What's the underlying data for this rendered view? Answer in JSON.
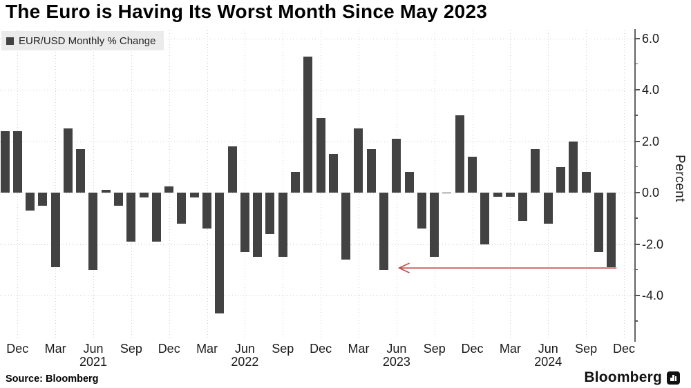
{
  "title": "The Euro is Having Its Worst Month Since May 2023",
  "legend": {
    "label": "EUR/USD Monthly % Change",
    "marker_color": "#424242"
  },
  "source": {
    "text": "Source: Bloomberg"
  },
  "brand": {
    "name": "Bloomberg",
    "icon": "bloomberg-pogo-icon"
  },
  "colors": {
    "bar": "#424242",
    "axis": "#636363",
    "grid": "#c9c9c9",
    "arrow": "#bf4a47",
    "legend_bg": "#ebebeb",
    "background": "#ffffff"
  },
  "chart_data": {
    "type": "bar",
    "title": "The Euro is Having Its Worst Month Since May 2023",
    "series_label": "EUR/USD Monthly % Change",
    "xlabel": "",
    "ylabel": "Percent",
    "ylim": [
      -5.6,
      6.4
    ],
    "grid": "dotted",
    "legend_position": "top-left",
    "y_axis_side": "right",
    "ytick_major": [
      {
        "value": 6,
        "label": "6.0"
      },
      {
        "value": 4,
        "label": "4.0"
      },
      {
        "value": 2,
        "label": "2.0"
      },
      {
        "value": 0,
        "label": "0.0"
      },
      {
        "value": -2,
        "label": "-2.0"
      },
      {
        "value": -4,
        "label": "-4.0"
      }
    ],
    "ytick_minor": [
      5,
      3,
      1,
      -1,
      -3,
      -5
    ],
    "months": [
      "Nov 2020",
      "Dec 2020",
      "Jan 2021",
      "Feb 2021",
      "Mar 2021",
      "Apr 2021",
      "May 2021",
      "Jun 2021",
      "Jul 2021",
      "Aug 2021",
      "Sep 2021",
      "Oct 2021",
      "Nov 2021",
      "Dec 2021",
      "Jan 2022",
      "Feb 2022",
      "Mar 2022",
      "Apr 2022",
      "May 2022",
      "Jun 2022",
      "Jul 2022",
      "Aug 2022",
      "Sep 2022",
      "Oct 2022",
      "Nov 2022",
      "Dec 2022",
      "Jan 2023",
      "Feb 2023",
      "Mar 2023",
      "Apr 2023",
      "May 2023",
      "Jun 2023",
      "Jul 2023",
      "Aug 2023",
      "Sep 2023",
      "Oct 2023",
      "Nov 2023",
      "Dec 2023",
      "Jan 2024",
      "Feb 2024",
      "Mar 2024",
      "Apr 2024",
      "May 2024",
      "Jun 2024",
      "Jul 2024",
      "Aug 2024",
      "Sep 2024",
      "Oct 2024",
      "Nov 2024"
    ],
    "values": [
      2.4,
      2.4,
      -0.7,
      -0.5,
      -2.9,
      2.5,
      1.7,
      -3.0,
      0.1,
      -0.5,
      -1.9,
      -0.2,
      -1.9,
      0.25,
      -1.2,
      -0.2,
      -1.4,
      -4.7,
      1.8,
      -2.3,
      -2.5,
      -1.6,
      -2.5,
      0.8,
      5.3,
      2.9,
      1.5,
      -2.6,
      2.5,
      1.7,
      -3.0,
      2.1,
      0.8,
      -1.4,
      -2.5,
      -0.04,
      3.0,
      1.4,
      -2.0,
      -0.15,
      -0.15,
      -1.1,
      1.7,
      -1.2,
      1.0,
      2.0,
      0.8,
      -2.3,
      -2.9
    ],
    "xticks": [
      {
        "month_index": 1,
        "label": "Dec"
      },
      {
        "month_index": 4,
        "label": "Mar"
      },
      {
        "month_index": 7,
        "label": "Jun",
        "year": "2021"
      },
      {
        "month_index": 10,
        "label": "Sep"
      },
      {
        "month_index": 13,
        "label": "Dec"
      },
      {
        "month_index": 16,
        "label": "Mar"
      },
      {
        "month_index": 19,
        "label": "Jun",
        "year": "2022"
      },
      {
        "month_index": 22,
        "label": "Sep"
      },
      {
        "month_index": 25,
        "label": "Dec"
      },
      {
        "month_index": 28,
        "label": "Mar"
      },
      {
        "month_index": 31,
        "label": "Jun",
        "year": "2023"
      },
      {
        "month_index": 34,
        "label": "Sep"
      },
      {
        "month_index": 37,
        "label": "Dec"
      },
      {
        "month_index": 40,
        "label": "Mar"
      },
      {
        "month_index": 43,
        "label": "Jun",
        "year": "2024"
      },
      {
        "month_index": 46,
        "label": "Sep"
      },
      {
        "month_index": 49,
        "label": "Dec"
      }
    ],
    "annotation": {
      "type": "arrow",
      "from_month": "Nov 2024",
      "to_month": "May 2023",
      "y": -2.93,
      "color": "#bf4a47"
    }
  }
}
